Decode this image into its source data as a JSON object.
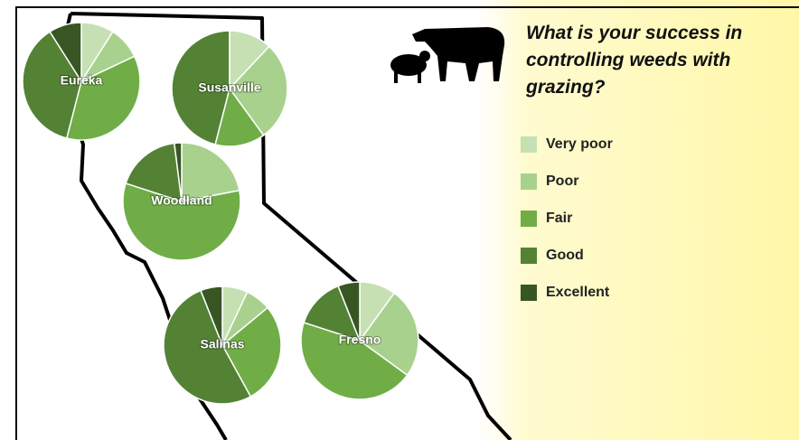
{
  "chart_data": {
    "type": "pie",
    "title": "What is your success in controlling weeds with grazing?",
    "categories": [
      "Very poor",
      "Poor",
      "Fair",
      "Good",
      "Excellent"
    ],
    "colors": [
      "#c6e0b4",
      "#a9d18e",
      "#70ad47",
      "#548235",
      "#375623"
    ],
    "series": [
      {
        "name": "Eureka",
        "values": [
          9,
          9,
          36,
          37,
          9
        ]
      },
      {
        "name": "Susanville",
        "values": [
          12,
          28,
          14,
          46,
          0
        ]
      },
      {
        "name": "Woodland",
        "values": [
          0,
          22,
          58,
          18,
          2
        ]
      },
      {
        "name": "Salinas",
        "values": [
          7,
          7,
          28,
          52,
          6
        ]
      },
      {
        "name": "Fresno",
        "values": [
          10,
          25,
          45,
          14,
          6
        ]
      }
    ]
  }
}
